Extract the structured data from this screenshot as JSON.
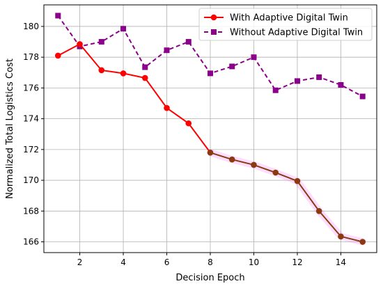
{
  "chart_data": {
    "type": "line",
    "title": "",
    "xlabel": "Decision Epoch",
    "ylabel": "Normalized Total Logistics Cost",
    "xlim": [
      0.35,
      15.65
    ],
    "ylim": [
      165.3,
      181.4
    ],
    "x_ticks": [
      2,
      4,
      6,
      8,
      10,
      12,
      14
    ],
    "y_ticks": [
      166,
      168,
      170,
      172,
      174,
      176,
      178,
      180
    ],
    "grid": true,
    "legend_position": "top-right",
    "x": [
      1,
      2,
      3,
      4,
      5,
      6,
      7,
      8,
      9,
      10,
      11,
      12,
      13,
      14,
      15
    ],
    "series": [
      {
        "name": "With Adaptive Digital Twin",
        "color": "#ff0000",
        "style": "solid",
        "marker": "circle",
        "values": [
          178.1,
          178.85,
          177.15,
          176.95,
          176.65,
          174.7,
          173.7,
          171.8,
          171.35,
          171.0,
          170.5,
          169.95,
          168.0,
          166.35,
          166.0
        ]
      },
      {
        "name": "Without Adaptive Digital Twin",
        "color": "#8b008b",
        "style": "dashed",
        "marker": "square",
        "values": [
          180.7,
          178.7,
          179.0,
          179.85,
          177.35,
          178.45,
          179.0,
          176.95,
          177.4,
          178.0,
          175.85,
          176.45,
          176.7,
          176.2,
          175.45
        ]
      }
    ],
    "highlight": {
      "from_x": 8,
      "to_x": 15,
      "line_color": "#8b3a10",
      "glow_color": "#ff66ff"
    }
  }
}
